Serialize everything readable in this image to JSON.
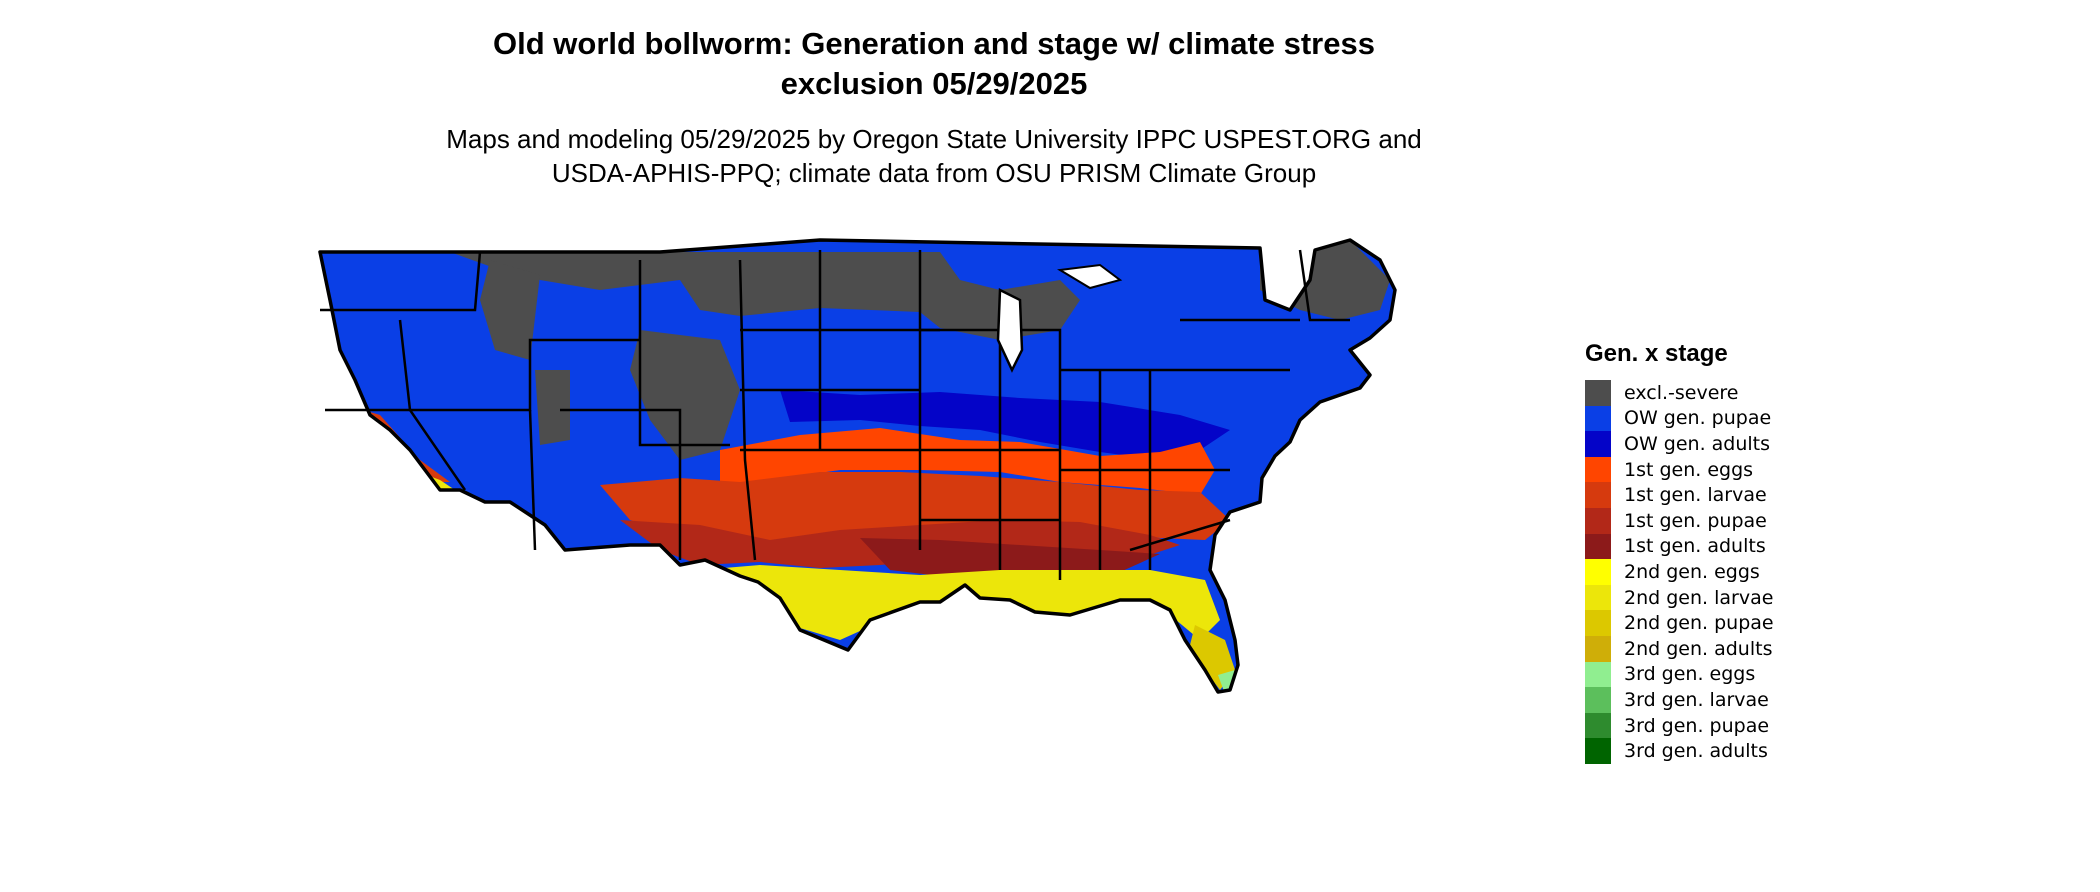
{
  "title": {
    "line1": "Old world bollworm: Generation and stage w/ climate stress",
    "line2": "exclusion 05/29/2025"
  },
  "subtitle": {
    "line1": "Maps and modeling 05/29/2025 by Oregon State University IPPC USPEST.ORG and",
    "line2": "USDA-APHIS-PPQ; climate data from OSU PRISM Climate Group"
  },
  "legend": {
    "title": "Gen. x stage",
    "items": [
      {
        "label": "excl.-severe",
        "color": "#4d4d4d"
      },
      {
        "label": "OW gen. pupae",
        "color": "#0a3fe6"
      },
      {
        "label": "OW gen. adults",
        "color": "#0404c8"
      },
      {
        "label": "1st gen. eggs",
        "color": "#ff4500"
      },
      {
        "label": "1st gen. larvae",
        "color": "#d63a0e"
      },
      {
        "label": "1st gen. pupae",
        "color": "#b22818"
      },
      {
        "label": "1st gen. adults",
        "color": "#8c1a1a"
      },
      {
        "label": "2nd gen. eggs",
        "color": "#ffff00"
      },
      {
        "label": "2nd gen. larvae",
        "color": "#ece60a"
      },
      {
        "label": "2nd gen. pupae",
        "color": "#dcc800"
      },
      {
        "label": "2nd gen. adults",
        "color": "#cfae08"
      },
      {
        "label": "3rd gen. eggs",
        "color": "#90ee90"
      },
      {
        "label": "3rd gen. larvae",
        "color": "#5cbf5c"
      },
      {
        "label": "3rd gen. pupae",
        "color": "#2e8b2e"
      },
      {
        "label": "3rd gen. adults",
        "color": "#006400"
      }
    ]
  }
}
